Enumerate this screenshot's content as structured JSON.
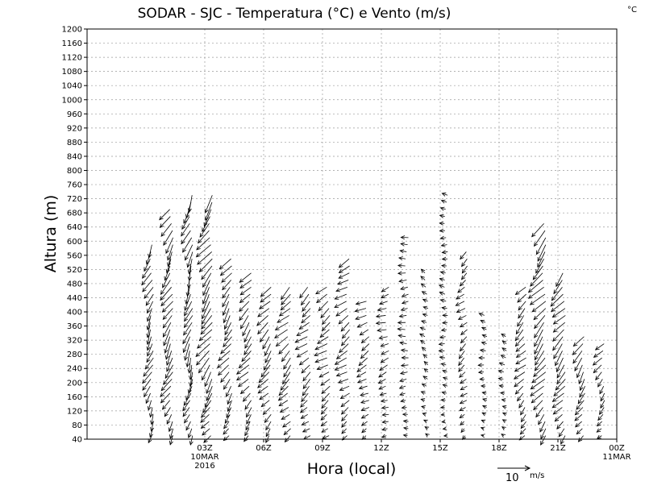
{
  "chart_data": {
    "type": "wind_barb_profile",
    "title": "SODAR - SJC - Temperatura (°C) e Vento (m/s)",
    "corner_label": "°C",
    "xlabel": "Hora (local)",
    "ylabel": "Altura (m)",
    "ylim": [
      40,
      1200
    ],
    "xlim_hours": [
      -3,
      24
    ],
    "grid": true,
    "y_ticks": [
      40,
      80,
      120,
      160,
      200,
      240,
      280,
      320,
      360,
      400,
      440,
      480,
      520,
      560,
      600,
      640,
      680,
      720,
      760,
      800,
      840,
      880,
      920,
      960,
      1000,
      1040,
      1080,
      1120,
      1160,
      1200
    ],
    "x_ticks": [
      {
        "hour": 3,
        "label": "03Z",
        "sub1": "10MAR",
        "sub2": "2016"
      },
      {
        "hour": 6,
        "label": "06Z",
        "sub1": "",
        "sub2": ""
      },
      {
        "hour": 9,
        "label": "09Z",
        "sub1": "",
        "sub2": ""
      },
      {
        "hour": 12,
        "label": "12Z",
        "sub1": "",
        "sub2": ""
      },
      {
        "hour": 15,
        "label": "15Z",
        "sub1": "",
        "sub2": ""
      },
      {
        "hour": 18,
        "label": "18Z",
        "sub1": "",
        "sub2": ""
      },
      {
        "hour": 21,
        "label": "21Z",
        "sub1": "",
        "sub2": ""
      },
      {
        "hour": 24,
        "label": "00Z",
        "sub1": "11MAR",
        "sub2": ""
      }
    ],
    "reference_vector": {
      "speed_label": "10",
      "unit": "m/s"
    },
    "profiles": [
      {
        "hour": 0.3,
        "top": 600,
        "speed": 8,
        "dir_deg": 245
      },
      {
        "hour": 1.3,
        "top": 690,
        "speed": 9,
        "dir_deg": 240
      },
      {
        "hour": 2.3,
        "top": 740,
        "speed": 9,
        "dir_deg": 250
      },
      {
        "hour": 3.3,
        "top": 740,
        "speed": 10,
        "dir_deg": 235
      },
      {
        "hour": 4.3,
        "top": 560,
        "speed": 8,
        "dir_deg": 235
      },
      {
        "hour": 5.3,
        "top": 520,
        "speed": 8,
        "dir_deg": 230
      },
      {
        "hour": 6.3,
        "top": 470,
        "speed": 8,
        "dir_deg": 230
      },
      {
        "hour": 7.3,
        "top": 480,
        "speed": 8,
        "dir_deg": 225
      },
      {
        "hour": 8.3,
        "top": 470,
        "speed": 7,
        "dir_deg": 220
      },
      {
        "hour": 9.3,
        "top": 480,
        "speed": 7,
        "dir_deg": 215
      },
      {
        "hour": 10.3,
        "top": 560,
        "speed": 7,
        "dir_deg": 215
      },
      {
        "hour": 11.3,
        "top": 440,
        "speed": 6,
        "dir_deg": 210
      },
      {
        "hour": 12.3,
        "top": 470,
        "speed": 5,
        "dir_deg": 200
      },
      {
        "hour": 13.3,
        "top": 620,
        "speed": 4,
        "dir_deg": 185
      },
      {
        "hour": 14.3,
        "top": 510,
        "speed": 3,
        "dir_deg": 150
      },
      {
        "hour": 15.3,
        "top": 740,
        "speed": 3,
        "dir_deg": 175
      },
      {
        "hour": 16.3,
        "top": 580,
        "speed": 5,
        "dir_deg": 220
      },
      {
        "hour": 17.3,
        "top": 400,
        "speed": 3,
        "dir_deg": 170
      },
      {
        "hour": 18.3,
        "top": 330,
        "speed": 3,
        "dir_deg": 160
      },
      {
        "hour": 19.3,
        "top": 480,
        "speed": 7,
        "dir_deg": 225
      },
      {
        "hour": 20.3,
        "top": 660,
        "speed": 10,
        "dir_deg": 230
      },
      {
        "hour": 21.3,
        "top": 520,
        "speed": 9,
        "dir_deg": 230
      },
      {
        "hour": 22.3,
        "top": 340,
        "speed": 8,
        "dir_deg": 235
      },
      {
        "hour": 23.3,
        "top": 320,
        "speed": 6,
        "dir_deg": 230
      }
    ],
    "level_step_m": 20,
    "lowest_level_m": 50
  }
}
